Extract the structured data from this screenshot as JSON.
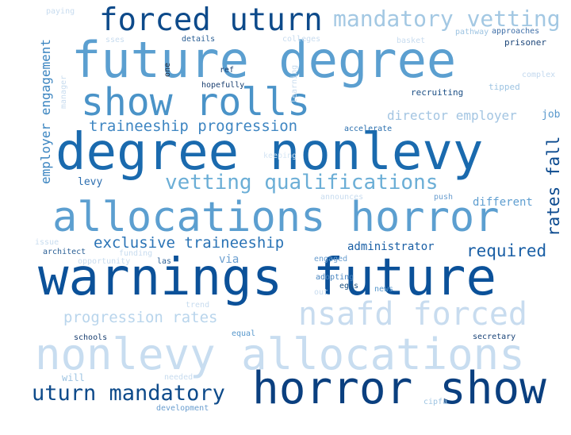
{
  "words": [
    {
      "text": "warnings future",
      "color": "#0b5199"
    },
    {
      "text": "future degree",
      "color": "#5b9fd0"
    },
    {
      "text": "degree nonlevy",
      "color": "#1a6aae"
    },
    {
      "text": "allocations horror",
      "color": "#5c9fd0"
    },
    {
      "text": "horror show",
      "color": "#0a3f7f"
    },
    {
      "text": "nonlevy allocations",
      "color": "#c8ddf0"
    },
    {
      "text": "show rolls",
      "color": "#4a93c8"
    },
    {
      "text": "nsafd forced",
      "color": "#c8dcef"
    },
    {
      "text": "forced uturn",
      "color": "#0d4a8a"
    },
    {
      "text": "uturn mandatory",
      "color": "#0d4a8a"
    },
    {
      "text": "mandatory vetting",
      "color": "#a3c8e3"
    },
    {
      "text": "vetting qualifications",
      "color": "#6baed6"
    },
    {
      "text": "traineeship progression",
      "color": "#3f86c2"
    },
    {
      "text": "exclusive traineeship",
      "color": "#2a73b5"
    },
    {
      "text": "progression rates",
      "color": "#b9d5ec"
    },
    {
      "text": "employer engagement",
      "color": "#3a84c0"
    },
    {
      "text": "rates fall",
      "color": "#0b4a8f"
    },
    {
      "text": "director employer",
      "color": "#a3c5e2"
    },
    {
      "text": "required",
      "color": "#1a5fa5"
    },
    {
      "text": "administrator",
      "color": "#1a5fa5"
    },
    {
      "text": "different",
      "color": "#5f9ed0"
    },
    {
      "text": "levy",
      "color": "#2d6fb0"
    },
    {
      "text": "job",
      "color": "#5898cc"
    },
    {
      "text": "accelerate",
      "color": "#2a6fae"
    },
    {
      "text": "recruiting",
      "color": "#1c4f85"
    },
    {
      "text": "complex",
      "color": "#c2d8ee"
    },
    {
      "text": "tipped",
      "color": "#9ec4e2"
    },
    {
      "text": "prisoner",
      "color": "#1a4478"
    },
    {
      "text": "approaches",
      "color": "#3f6fa8"
    },
    {
      "text": "pathway",
      "color": "#9ec4e2"
    },
    {
      "text": "basket",
      "color": "#c8dcef"
    },
    {
      "text": "colleges",
      "color": "#c8dcef"
    },
    {
      "text": "details",
      "color": "#2a5f95"
    },
    {
      "text": "sses",
      "color": "#c8dcef"
    },
    {
      "text": "paying",
      "color": "#c8dcef"
    },
    {
      "text": "one",
      "color": "#222e44"
    },
    {
      "text": "ref",
      "color": "#1a3f70"
    },
    {
      "text": "hopefully",
      "color": "#1a3f70"
    },
    {
      "text": "learning",
      "color": "#c8dcef"
    },
    {
      "text": "manager",
      "color": "#c8dcef"
    },
    {
      "text": "keeping",
      "color": "#d6e6f4"
    },
    {
      "text": "announces",
      "color": "#c8dcef"
    },
    {
      "text": "push",
      "color": "#6a9ecf"
    },
    {
      "text": "issue",
      "color": "#c8dcef"
    },
    {
      "text": "architect",
      "color": "#2a5f95"
    },
    {
      "text": "funding",
      "color": "#c8dcef"
    },
    {
      "text": "opportunity",
      "color": "#c8dcef"
    },
    {
      "text": "las",
      "color": "#2a5f95"
    },
    {
      "text": "via",
      "color": "#6a9ecf"
    },
    {
      "text": "engaged",
      "color": "#6a9ecf"
    },
    {
      "text": "adopting",
      "color": "#4a86c0"
    },
    {
      "text": "eggs",
      "color": "#1a5080"
    },
    {
      "text": "news",
      "color": "#5898cc"
    },
    {
      "text": "out",
      "color": "#c8dcef"
    },
    {
      "text": "trend",
      "color": "#c8dcef"
    },
    {
      "text": "schools",
      "color": "#1a3f70"
    },
    {
      "text": "equal",
      "color": "#5898cc"
    },
    {
      "text": "secretary",
      "color": "#1a4478"
    },
    {
      "text": "will",
      "color": "#9ec4e2"
    },
    {
      "text": "needed",
      "color": "#c8dcef"
    },
    {
      "text": "development",
      "color": "#6a9ecf"
    },
    {
      "text": "cipfa",
      "color": "#9ec4e2"
    }
  ]
}
